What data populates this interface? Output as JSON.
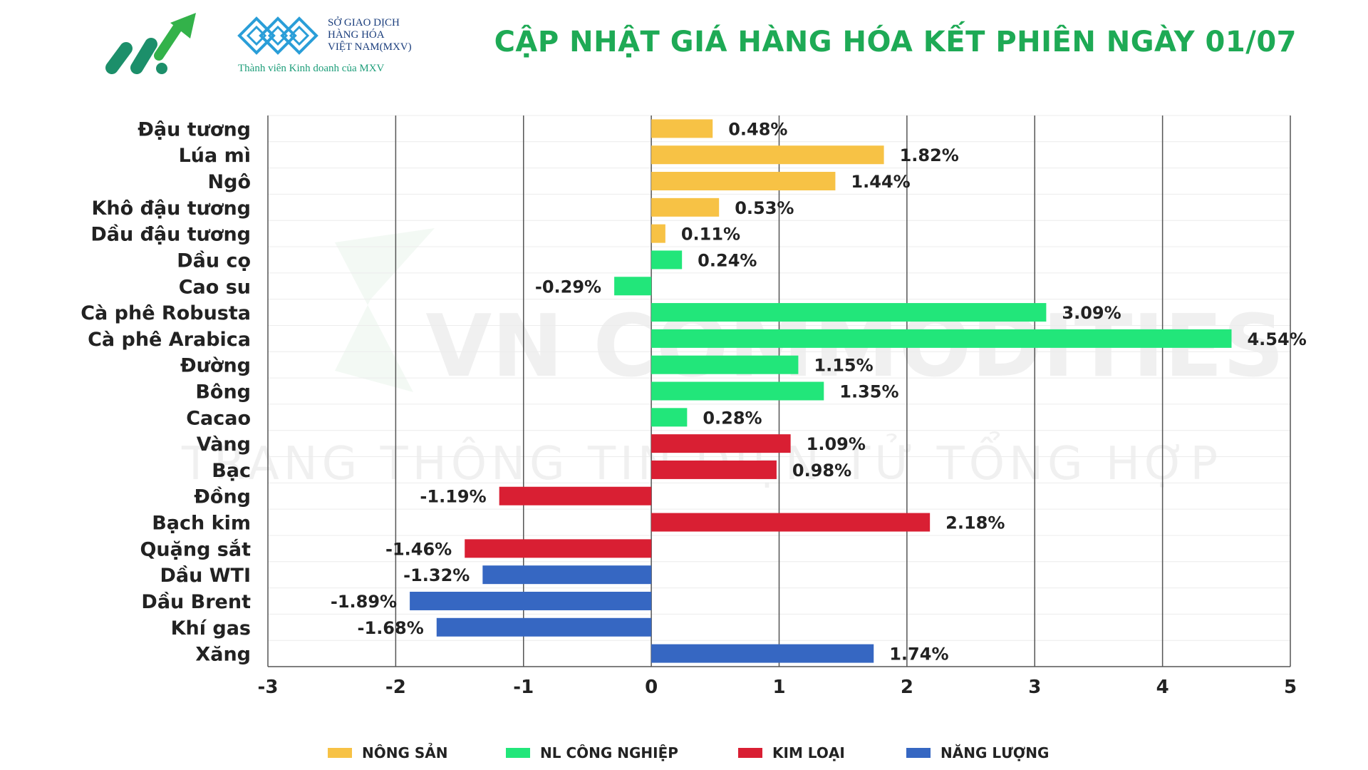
{
  "header": {
    "title": "CẬP NHẬT GIÁ HÀNG HÓA KẾT PHIÊN NGÀY 01/07",
    "exchange_line1": "SỞ GIAO DỊCH",
    "exchange_line2": "HÀNG HÓA",
    "exchange_line3": "VIỆT NAM(MXV)",
    "member_text": "Thành viên Kinh doanh của MXV"
  },
  "watermark": {
    "line1": "VN COMMODITIES",
    "line2": "TRANG THÔNG TIN ĐIỆN TỬ TỔNG HỢP"
  },
  "colors": {
    "nong_san": "#f7c245",
    "nl_cong_nghiep": "#22e67a",
    "kim_loai": "#d91f33",
    "nang_luong": "#3667c2",
    "title": "#1eaa55"
  },
  "chart_data": {
    "type": "bar",
    "orientation": "horizontal",
    "categories": [
      "Đậu tương",
      "Lúa mì",
      "Ngô",
      "Khô đậu tương",
      "Dầu đậu tương",
      "Dầu cọ",
      "Cao su",
      "Cà phê Robusta",
      "Cà phê Arabica",
      "Đường",
      "Bông",
      "Cacao",
      "Vàng",
      "Bạc",
      "Đồng",
      "Bạch kim",
      "Quặng sắt",
      "Dầu WTI",
      "Dầu Brent",
      "Khí gas",
      "Xăng"
    ],
    "values": [
      0.48,
      1.82,
      1.44,
      0.53,
      0.11,
      0.24,
      -0.29,
      3.09,
      4.54,
      1.15,
      1.35,
      0.28,
      1.09,
      0.98,
      -1.19,
      2.18,
      -1.46,
      -1.32,
      -1.89,
      -1.68,
      1.74
    ],
    "value_labels": [
      "0.48%",
      "1.82%",
      "1.44%",
      "0.53%",
      "0.11%",
      "0.24%",
      "-0.29%",
      "3.09%",
      "4.54%",
      "1.15%",
      "1.35%",
      "0.28%",
      "1.09%",
      "0.98%",
      "-1.19%",
      "2.18%",
      "-1.46%",
      "-1.32%",
      "-1.89%",
      "-1.68%",
      "1.74%"
    ],
    "groups": [
      "nong_san",
      "nong_san",
      "nong_san",
      "nong_san",
      "nong_san",
      "nl_cong_nghiep",
      "nl_cong_nghiep",
      "nl_cong_nghiep",
      "nl_cong_nghiep",
      "nl_cong_nghiep",
      "nl_cong_nghiep",
      "nl_cong_nghiep",
      "kim_loai",
      "kim_loai",
      "kim_loai",
      "kim_loai",
      "kim_loai",
      "nang_luong",
      "nang_luong",
      "nang_luong",
      "nang_luong"
    ],
    "xlim": [
      -3,
      5
    ],
    "x_ticks": [
      "-3",
      "-2",
      "-1",
      "0",
      "1",
      "2",
      "3",
      "4",
      "5"
    ],
    "grid": true,
    "legend_position": "bottom",
    "legend": [
      {
        "key": "nong_san",
        "label": "NÔNG SẢN"
      },
      {
        "key": "nl_cong_nghiep",
        "label": "NL CÔNG NGHIỆP"
      },
      {
        "key": "kim_loai",
        "label": "KIM LOẠI"
      },
      {
        "key": "nang_luong",
        "label": "NĂNG LƯỢNG"
      }
    ]
  }
}
